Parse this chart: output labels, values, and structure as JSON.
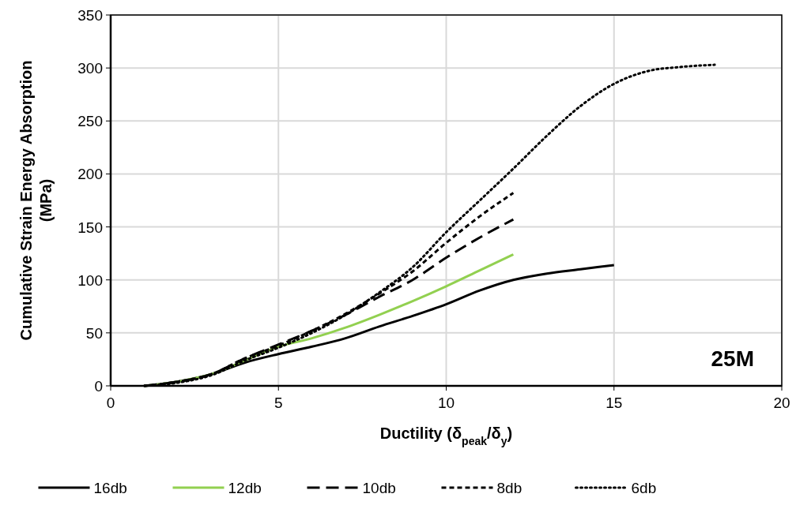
{
  "chart_data": {
    "type": "line",
    "xlabel": "Ductility (δ$_{peak}$/δ$_{y}$)",
    "ylabel": "Cumulative Strain Energy Absorption (MPa)",
    "xlim": [
      0,
      20
    ],
    "ylim": [
      0,
      350
    ],
    "xticks": [
      0,
      5,
      10,
      15,
      20
    ],
    "yticks": [
      0,
      50,
      100,
      150,
      200,
      250,
      300,
      350
    ],
    "grid": true,
    "legend": "bottom",
    "annotations": [
      "25M"
    ],
    "series": [
      {
        "name": "16db",
        "color": "#000000",
        "line_style": "solid",
        "x": [
          1,
          2,
          3,
          4,
          5,
          6,
          7,
          8,
          9,
          10,
          11,
          12,
          13,
          14,
          15
        ],
        "values": [
          0,
          4,
          11,
          22,
          30,
          37,
          45,
          56,
          66,
          77,
          90,
          100,
          106,
          110,
          114
        ]
      },
      {
        "name": "12db",
        "color": "#92d050",
        "line_style": "solid",
        "x": [
          1,
          2,
          3,
          4,
          5,
          6,
          7,
          8,
          9,
          10,
          11,
          12
        ],
        "values": [
          0,
          4,
          11,
          24,
          37,
          45,
          55,
          67,
          80,
          94,
          109,
          124
        ]
      },
      {
        "name": "10db",
        "color": "#000000",
        "line_style": "longdash",
        "x": [
          1,
          2,
          3,
          4,
          5,
          6,
          7,
          8,
          9,
          10,
          11,
          12
        ],
        "values": [
          0,
          4,
          11,
          26,
          39,
          52,
          67,
          84,
          100,
          121,
          140,
          157
        ]
      },
      {
        "name": "8db",
        "color": "#000000",
        "line_style": "dashed",
        "x": [
          1,
          2,
          3,
          4,
          5,
          6,
          7,
          8,
          9,
          10,
          11,
          12
        ],
        "values": [
          0,
          4,
          11,
          26,
          38,
          52,
          68,
          87,
          108,
          135,
          160,
          182
        ]
      },
      {
        "name": "6db",
        "color": "#000000",
        "line_style": "dotted",
        "x": [
          1,
          2,
          3,
          4,
          5,
          6,
          7,
          8,
          9,
          10,
          11,
          12,
          13,
          14,
          15,
          16,
          17,
          18
        ],
        "values": [
          0,
          3,
          10,
          24,
          36,
          50,
          67,
          88,
          112,
          145,
          175,
          205,
          236,
          264,
          285,
          297,
          301,
          303
        ]
      }
    ]
  }
}
